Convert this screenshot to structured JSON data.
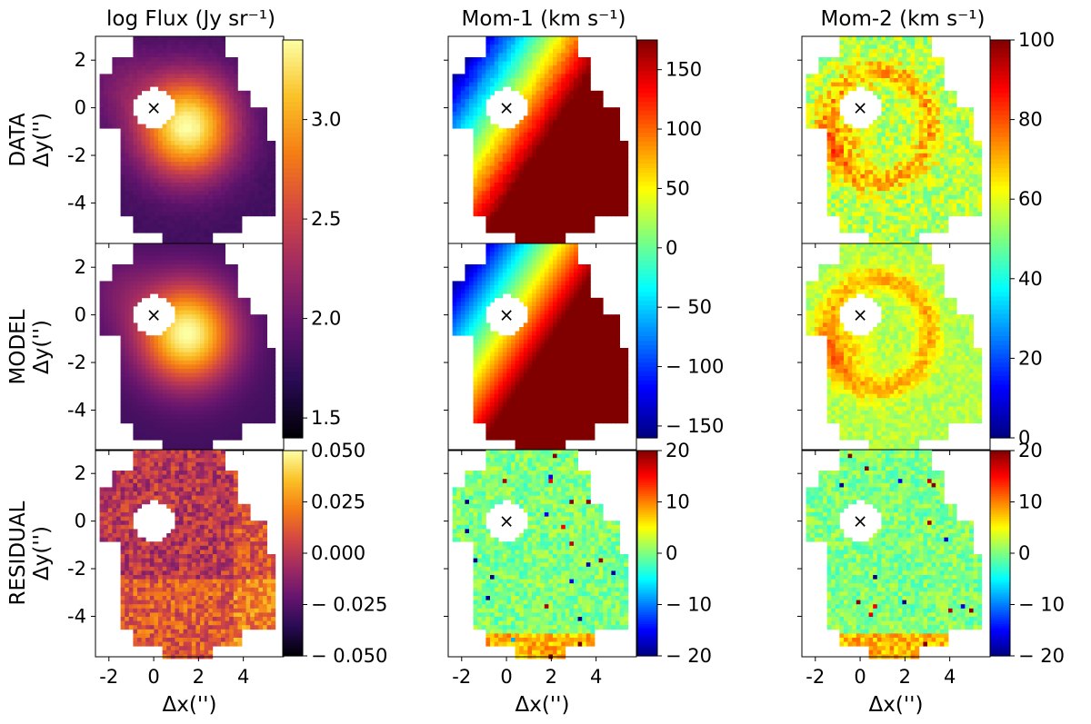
{
  "figure": {
    "column_titles": [
      "log Flux (Jy sr⁻¹)",
      "Mom-1 (km s⁻¹)",
      "Mom-2 (km s⁻¹)"
    ],
    "row_labels": [
      "DATA",
      "MODEL",
      "RESIDUAL"
    ],
    "ylabel": "Δy('')",
    "xlabel": "Δx('')",
    "center_marker": "×"
  },
  "chart_data": {
    "type": "heatmap",
    "panels": "3x3 grid of 2D maps (rows: DATA, MODEL, RESIDUAL; columns: log Flux, Mom-1, Mom-2)",
    "xlim": [
      -2.6,
      5.8
    ],
    "ylim": [
      -5.7,
      3.0
    ],
    "xticks": [
      -2,
      0,
      2,
      4
    ],
    "yticks": [
      2,
      0,
      -2,
      -4
    ],
    "xtick_labels": [
      "-2",
      "0",
      "2",
      "4"
    ],
    "ytick_labels": [
      "2",
      "0",
      "-2",
      "-4"
    ],
    "colorbars": [
      {
        "name": "flux",
        "colormap": "inferno",
        "range": [
          1.4,
          3.4
        ],
        "ticks": [
          3.0,
          2.5,
          2.0,
          1.5
        ],
        "tick_labels": [
          "3.0",
          "2.5",
          "2.0",
          "1.5"
        ],
        "applies_to": "log Flux DATA and MODEL"
      },
      {
        "name": "velocity",
        "colormap": "jet",
        "range": [
          -160,
          175
        ],
        "ticks": [
          150,
          100,
          50,
          0,
          -50,
          -100,
          -150
        ],
        "tick_labels": [
          "150",
          "100",
          "50",
          "0",
          "− 50",
          "− 100",
          "− 150"
        ],
        "applies_to": "Mom-1 DATA and MODEL"
      },
      {
        "name": "dispersion",
        "colormap": "jet",
        "range": [
          0,
          100
        ],
        "ticks": [
          100,
          80,
          60,
          40,
          20,
          0
        ],
        "tick_labels": [
          "100",
          "80",
          "60",
          "40",
          "20",
          "0"
        ],
        "applies_to": "Mom-2 DATA and MODEL"
      },
      {
        "name": "flux_residual",
        "colormap": "inferno",
        "range": [
          -0.05,
          0.05
        ],
        "ticks": [
          0.05,
          0.025,
          0.0,
          -0.025,
          -0.05
        ],
        "tick_labels": [
          "0.050",
          "0.025",
          "0.000",
          "− 0.025",
          "− 0.050"
        ],
        "applies_to": "log Flux RESIDUAL"
      },
      {
        "name": "mom1_residual",
        "colormap": "jet",
        "range": [
          -20,
          20
        ],
        "ticks": [
          20,
          10,
          0,
          -10,
          -20
        ],
        "tick_labels": [
          "20",
          "10",
          "0",
          "− 10",
          "− 20"
        ],
        "applies_to": "Mom-1 RESIDUAL"
      },
      {
        "name": "mom2_residual",
        "colormap": "jet",
        "range": [
          -20,
          20
        ],
        "ticks": [
          20,
          10,
          0,
          -10,
          -20
        ],
        "tick_labels": [
          "20",
          "10",
          "0",
          "− 10",
          "− 20"
        ],
        "applies_to": "Mom-2 RESIDUAL"
      }
    ],
    "features": {
      "nucleus_position": [
        0,
        0
      ],
      "flux_peak_position": [
        1.5,
        -0.8
      ],
      "velocity_gradient": "approaching (~ -150 km/s) at upper-left, receding (~ +175 km/s) at lower-right",
      "dispersion_typical": 55,
      "residuals_typical": 0
    }
  }
}
